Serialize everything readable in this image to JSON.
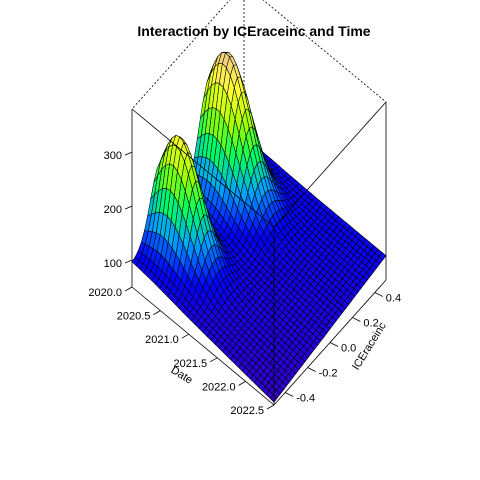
{
  "chart_data": {
    "type": "surface",
    "title": "Interaction by ICEraceinc and Time",
    "xlabel": "Date",
    "ylabel": "ICEraceinc",
    "zlabel": "",
    "xlim": [
      2020.0,
      2022.5
    ],
    "ylim": [
      -0.5,
      0.5
    ],
    "zlim": [
      50,
      380
    ],
    "x_ticks": [
      2020.0,
      2020.5,
      2021.0,
      2021.5,
      2022.0,
      2022.5
    ],
    "x_tick_labels": [
      "2020.0",
      "2020.5",
      "2021.0",
      "2021.5",
      "2022.0",
      "2022.5"
    ],
    "y_ticks": [
      -0.4,
      -0.2,
      0.0,
      0.2,
      0.4
    ],
    "y_tick_labels": [
      "-0.4",
      "-0.2",
      "0.0",
      "0.2",
      "0.4"
    ],
    "z_ticks": [
      100,
      200,
      300
    ],
    "z_tick_labels": [
      "100",
      "200",
      "300"
    ],
    "surface_peaks": [
      {
        "x": 2020.3,
        "y": 0.2,
        "z": 350
      },
      {
        "x": 2020.35,
        "y": -0.25,
        "z": 320
      }
    ],
    "surface_min": {
      "x": 2022.5,
      "y": -0.45,
      "z": 55
    },
    "colormap": [
      "#3300cc",
      "#0000ff",
      "#00a0ff",
      "#00ff60",
      "#a0ff00",
      "#ffff30",
      "#f0c890"
    ],
    "mesh_color": "#000000",
    "grid": false,
    "box": true
  }
}
